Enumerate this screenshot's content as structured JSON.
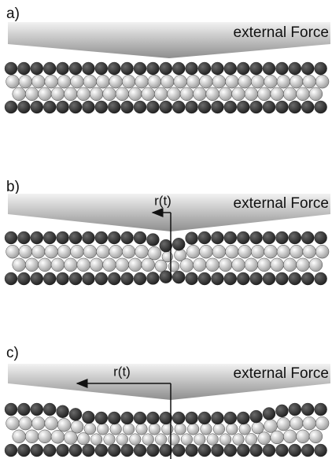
{
  "panels": [
    {
      "label": "a)",
      "force_label": "external Force"
    },
    {
      "label": "b)",
      "force_label": "external Force",
      "radius_label": "r(t)"
    },
    {
      "label": "c)",
      "force_label": "external Force",
      "radius_label": "r(t)"
    }
  ]
}
